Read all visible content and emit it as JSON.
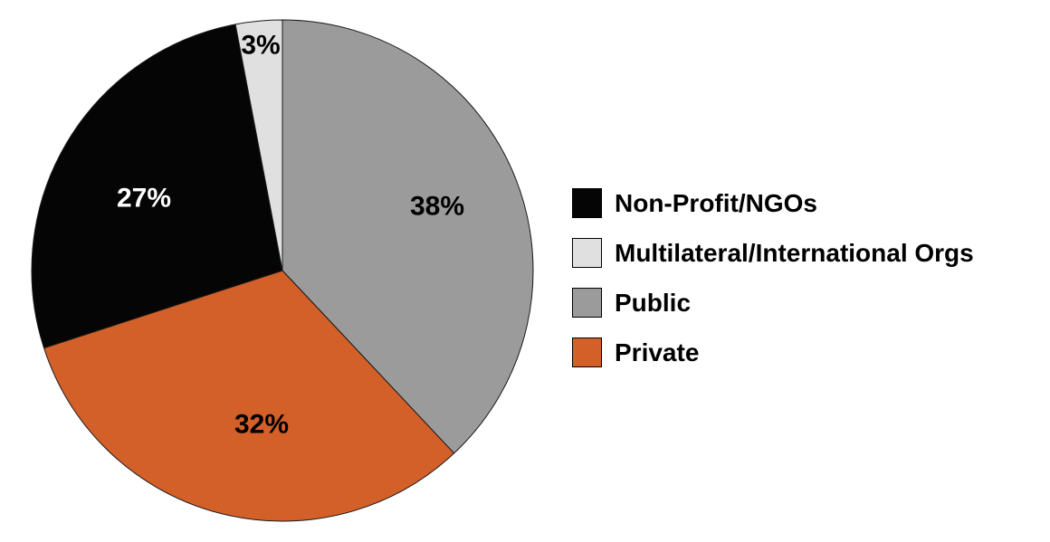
{
  "chart_data": {
    "type": "pie",
    "slices": [
      {
        "name": "Public",
        "value": 38,
        "label": "38%",
        "color": "#9b9b9b",
        "label_color": "#000000"
      },
      {
        "name": "Private",
        "value": 32,
        "label": "32%",
        "color": "#d35f29",
        "label_color": "#000000"
      },
      {
        "name": "Non-Profit/NGOs",
        "value": 27,
        "label": "27%",
        "color": "#050505",
        "label_color": "#ffffff"
      },
      {
        "name": "Multilateral/International Orgs",
        "value": 3,
        "label": "3%",
        "color": "#e0e0e1",
        "label_color": "#000000"
      }
    ],
    "start_angle_deg": 0,
    "direction": "clockwise",
    "legend": {
      "position": "right",
      "entries": [
        {
          "name": "Non-Profit/NGOs",
          "color": "#050505"
        },
        {
          "name": "Multilateral/International Orgs",
          "color": "#e0e0e1"
        },
        {
          "name": "Public",
          "color": "#9b9b9b"
        },
        {
          "name": "Private",
          "color": "#d35f29"
        }
      ]
    }
  }
}
